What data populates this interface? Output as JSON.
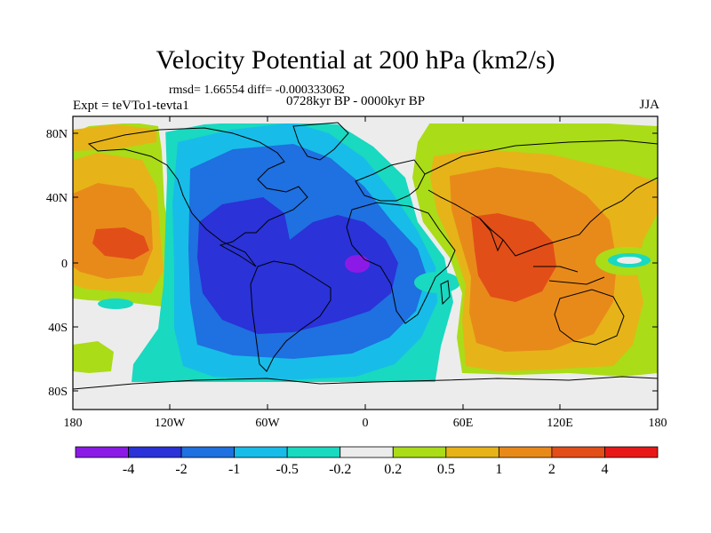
{
  "title": "Velocity Potential at 200 hPa (km2/s)",
  "stats_line": "rmsd= 1.66554 diff= -0.000333062",
  "experiment": "Expt = teVTo1-tevta1",
  "period": "0728kyr BP - 0000kyr BP",
  "season": "JJA",
  "lat_ticks": [
    "80N",
    "40N",
    "0",
    "40S",
    "80S"
  ],
  "lon_ticks": [
    "180",
    "120W",
    "60W",
    "0",
    "60E",
    "120E",
    "180"
  ],
  "colorbar": {
    "labels": [
      "-4",
      "-2",
      "-1",
      "-0.5",
      "-0.2",
      "0.2",
      "0.5",
      "1",
      "2",
      "4"
    ],
    "colors": [
      "#8c1ae6",
      "#2a32d8",
      "#1f70e0",
      "#17bde8",
      "#19d9c0",
      "#ececec",
      "#aadc18",
      "#e6b418",
      "#e88a1a",
      "#e24e18",
      "#e81818"
    ]
  },
  "map_colors": {
    "neutral": "#ececec",
    "land_outline": "#000000"
  }
}
